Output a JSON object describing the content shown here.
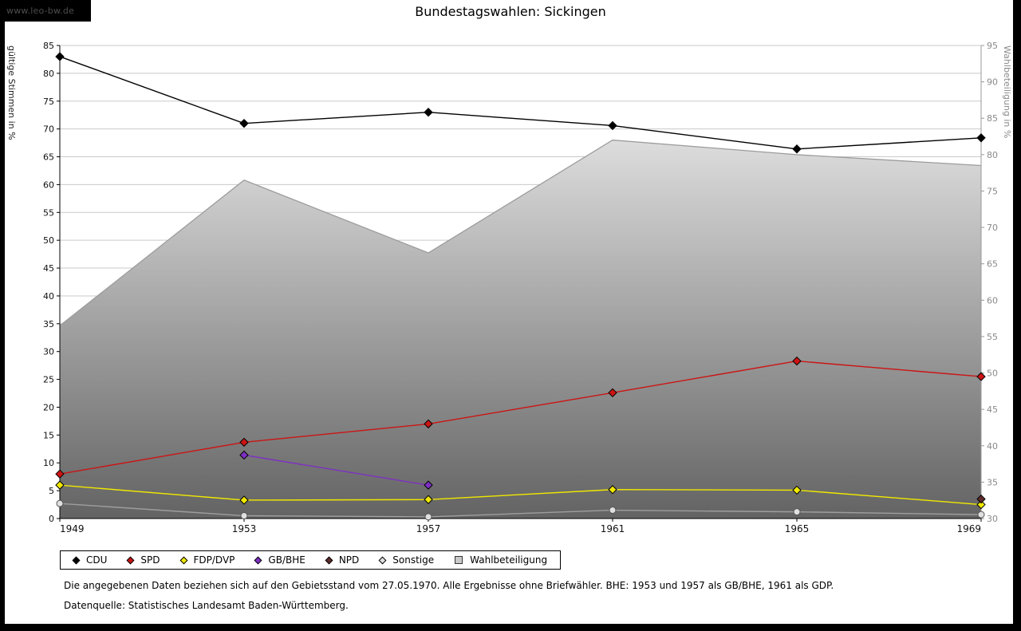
{
  "watermark": "www.leo-bw.de",
  "header": {
    "title": "Bundestagswahlen: Sickingen"
  },
  "axes": {
    "left_title": "gültige Stimmen in %",
    "right_title": "Wahlbeteiligung in %"
  },
  "footnotes": {
    "line1": "Die angegebenen Daten beziehen sich auf den Gebietsstand vom 27.05.1970. Alle Ergebnisse ohne Briefwähler. BHE: 1953 und 1957 als GB/BHE, 1961 als GDP.",
    "line2": "Datenquelle: Statistisches Landesamt Baden-Württemberg."
  },
  "chart_data": {
    "type": "line",
    "title": "Bundestagswahlen: Sickingen",
    "x": [
      1949,
      1953,
      1957,
      1961,
      1965,
      1969
    ],
    "left_axis": {
      "label": "gültige Stimmen in %",
      "min": 0,
      "max": 85,
      "step": 5
    },
    "right_axis": {
      "label": "Wahlbeteiligung in %",
      "min": 30,
      "max": 95,
      "step": 5
    },
    "grid": true,
    "legend_position": "bottom-left",
    "series": [
      {
        "name": "CDU",
        "chart_type": "line",
        "axis": "left",
        "color": "#000000",
        "marker": "diamond",
        "values": [
          83,
          71,
          73,
          70.6,
          66.4,
          68.4
        ]
      },
      {
        "name": "SPD",
        "chart_type": "line",
        "axis": "left",
        "color": "#cc1414",
        "marker": "diamond",
        "values": [
          8,
          13.7,
          17,
          22.6,
          28.3,
          25.5
        ]
      },
      {
        "name": "FDP/DVP",
        "chart_type": "line",
        "axis": "left",
        "color": "#f0e800",
        "marker": "diamond",
        "values": [
          6,
          3.3,
          3.4,
          5.2,
          5.1,
          2.5
        ]
      },
      {
        "name": "GB/BHE",
        "chart_type": "line",
        "axis": "left",
        "color": "#7e2fc4",
        "marker": "diamond",
        "values": [
          null,
          11.4,
          6,
          null,
          null,
          null
        ]
      },
      {
        "name": "NPD",
        "chart_type": "line",
        "axis": "left",
        "color": "#5e2a2a",
        "marker": "diamond",
        "values": [
          null,
          null,
          null,
          null,
          null,
          3.5
        ]
      },
      {
        "name": "Sonstige",
        "chart_type": "line",
        "axis": "left",
        "color": "#e0e0e0",
        "line_color": "#9e9e9e",
        "marker": "circle",
        "values": [
          2.7,
          0.5,
          0.3,
          1.5,
          1.2,
          0.7
        ]
      },
      {
        "name": "Wahlbeteiligung",
        "chart_type": "area",
        "axis": "right",
        "fill_top": "#fbfbfb",
        "fill_bottom": "#636363",
        "line_color": "#9c9c9c",
        "values": [
          56.5,
          76.5,
          66.5,
          82,
          80,
          78.5
        ]
      }
    ]
  }
}
